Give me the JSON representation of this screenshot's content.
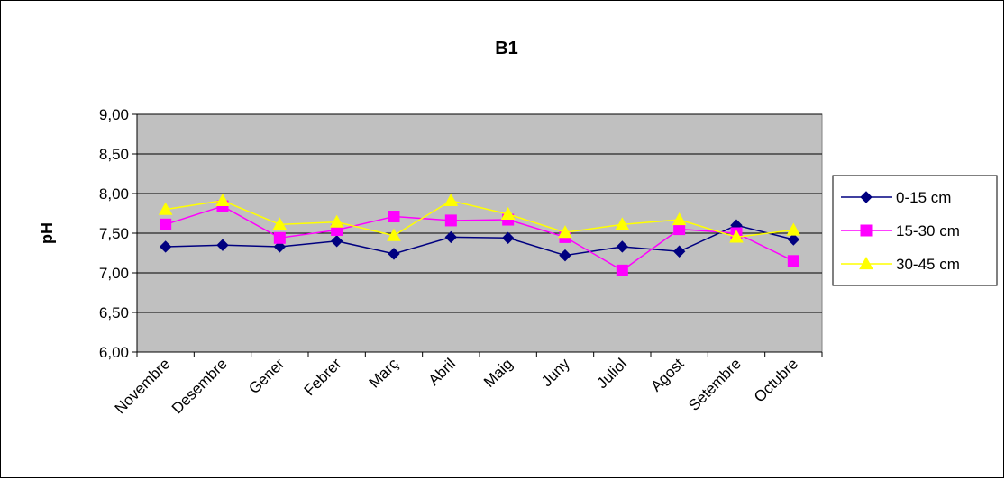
{
  "chart_data": {
    "type": "line",
    "title": "B1",
    "xlabel": "",
    "ylabel": "pH",
    "ylim": [
      6.0,
      9.0
    ],
    "yticks": [
      "6,00",
      "6,50",
      "7,00",
      "7,50",
      "8,00",
      "8,50",
      "9,00"
    ],
    "categories": [
      "Novembre",
      "Desembre",
      "Gener",
      "Febrer",
      "Març",
      "Abril",
      "Maig",
      "Juny",
      "Juliol",
      "Agost",
      "Setembre",
      "Octubre"
    ],
    "grid": "horizontal",
    "legend_position": "right",
    "plot_background": "#c0c0c0",
    "series": [
      {
        "name": "0-15 cm",
        "color": "#000080",
        "marker": "diamond",
        "values": [
          7.33,
          7.35,
          7.33,
          7.4,
          7.24,
          7.45,
          7.44,
          7.22,
          7.33,
          7.27,
          7.6,
          7.42
        ]
      },
      {
        "name": "15-30 cm",
        "color": "#ff00ff",
        "marker": "square",
        "values": [
          7.61,
          7.84,
          7.44,
          7.54,
          7.71,
          7.66,
          7.67,
          7.45,
          7.03,
          7.55,
          7.5,
          7.15
        ]
      },
      {
        "name": "30-45 cm",
        "color": "#ffff00",
        "marker": "triangle",
        "values": [
          7.8,
          7.91,
          7.61,
          7.64,
          7.47,
          7.91,
          7.74,
          7.51,
          7.61,
          7.67,
          7.45,
          7.54
        ]
      }
    ]
  }
}
